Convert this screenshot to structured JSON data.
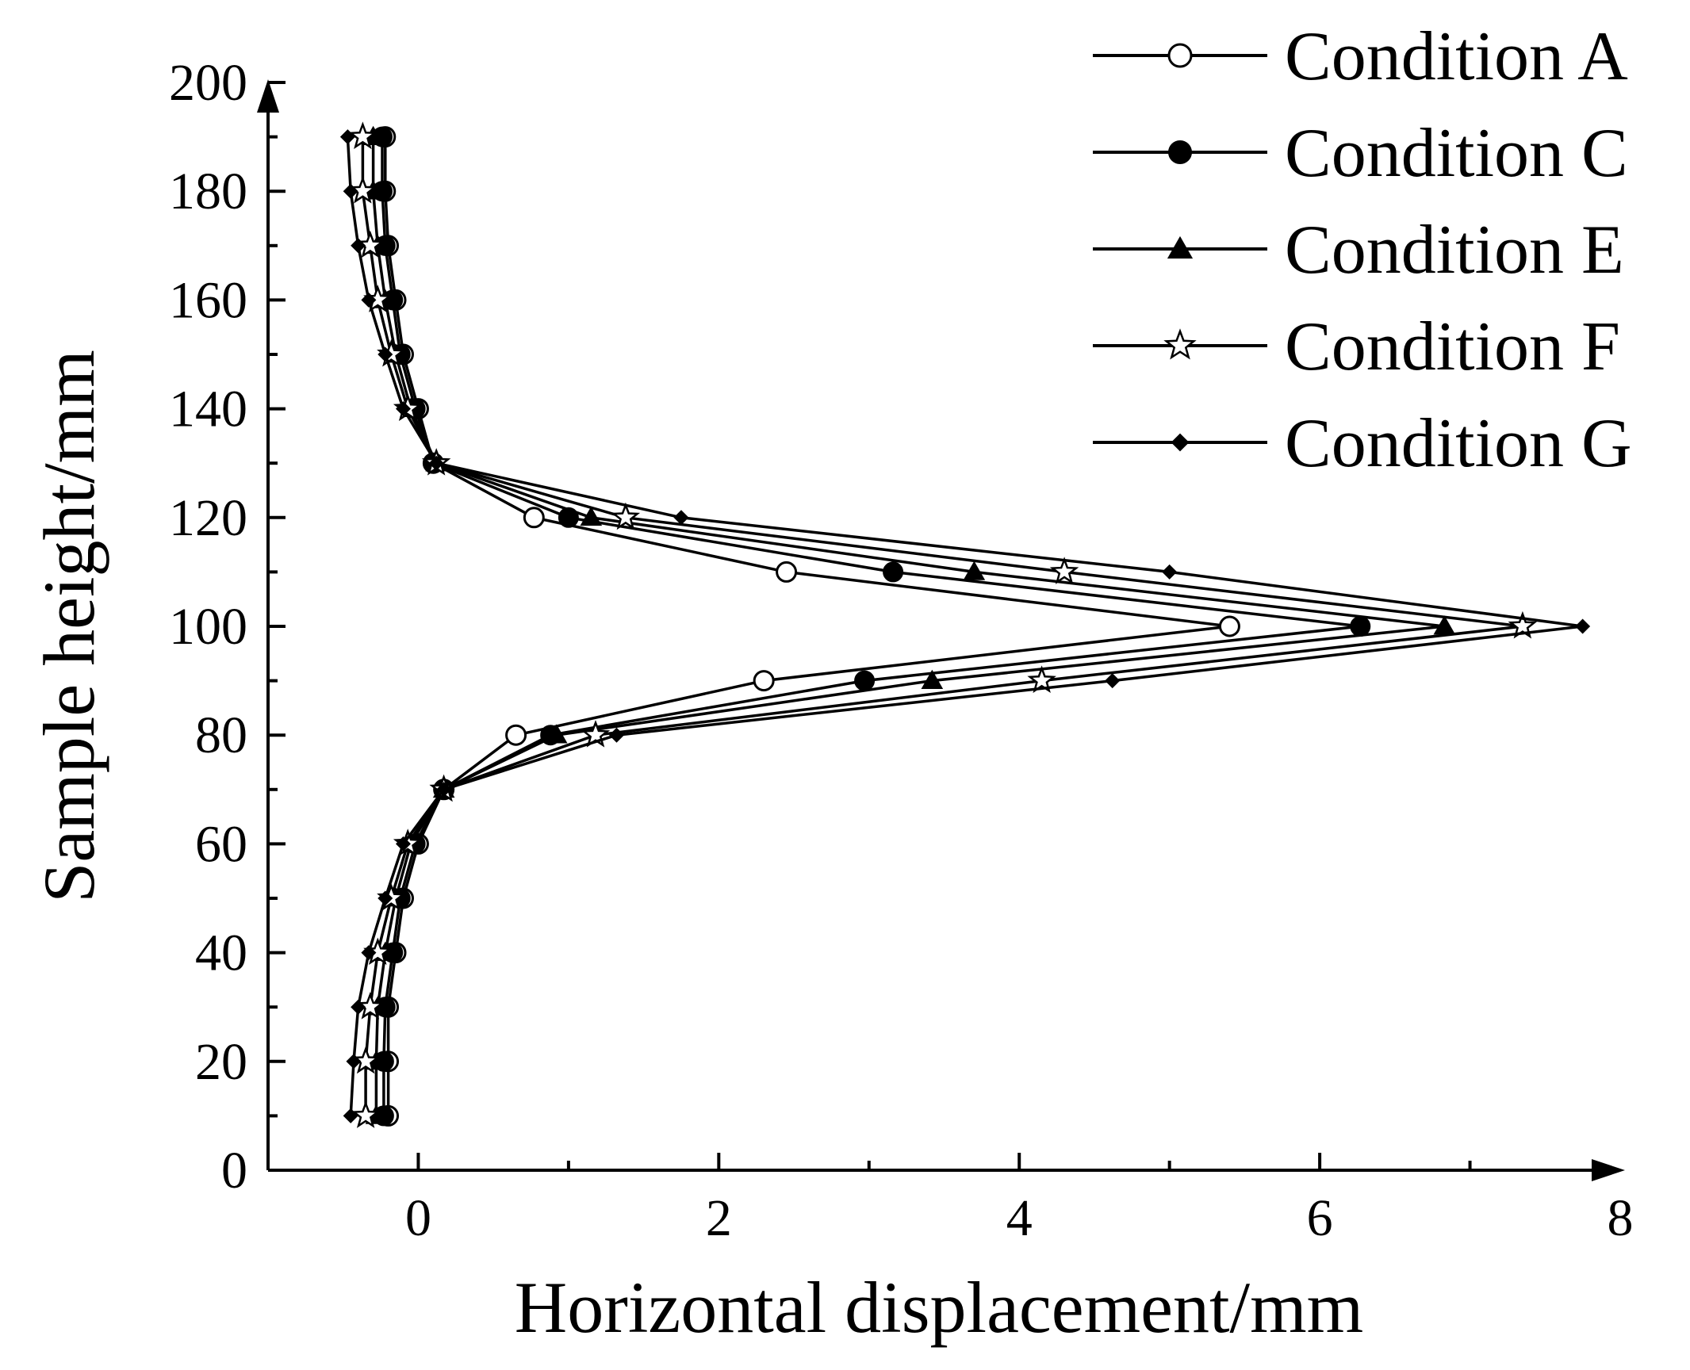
{
  "chart_data": {
    "type": "line",
    "xlabel": "Horizontal displacement/mm",
    "ylabel": "Sample height/mm",
    "xlim": [
      -1,
      8
    ],
    "ylim": [
      0,
      200
    ],
    "xticks": [
      0,
      2,
      4,
      6,
      8
    ],
    "yticks": [
      0,
      20,
      40,
      60,
      80,
      100,
      120,
      140,
      160,
      180,
      200
    ],
    "grid": false,
    "legend_position": "top-right",
    "y_values": [
      10,
      20,
      30,
      40,
      50,
      60,
      70,
      80,
      90,
      100,
      110,
      120,
      130,
      140,
      150,
      160,
      170,
      180,
      190
    ],
    "series": [
      {
        "name": "Condition A",
        "marker": "open-circle",
        "x": [
          -0.2,
          -0.2,
          -0.2,
          -0.15,
          -0.1,
          0.0,
          0.17,
          0.65,
          2.3,
          5.4,
          2.45,
          0.77,
          0.1,
          0.0,
          -0.1,
          -0.15,
          -0.2,
          -0.22,
          -0.22
        ]
      },
      {
        "name": "Condition C",
        "marker": "filled-circle",
        "x": [
          -0.23,
          -0.23,
          -0.22,
          -0.17,
          -0.12,
          -0.02,
          0.17,
          0.88,
          2.97,
          6.27,
          3.16,
          1.0,
          0.1,
          -0.02,
          -0.12,
          -0.17,
          -0.22,
          -0.24,
          -0.24
        ]
      },
      {
        "name": "Condition E",
        "marker": "filled-triangle",
        "x": [
          -0.28,
          -0.28,
          -0.27,
          -0.22,
          -0.15,
          -0.05,
          0.17,
          0.92,
          3.42,
          6.83,
          3.7,
          1.15,
          0.12,
          -0.05,
          -0.15,
          -0.22,
          -0.27,
          -0.3,
          -0.3
        ]
      },
      {
        "name": "Condition F",
        "marker": "open-star",
        "x": [
          -0.35,
          -0.35,
          -0.32,
          -0.27,
          -0.18,
          -0.07,
          0.17,
          1.18,
          4.15,
          7.35,
          4.3,
          1.38,
          0.12,
          -0.07,
          -0.18,
          -0.27,
          -0.32,
          -0.37,
          -0.37
        ]
      },
      {
        "name": "Condition G",
        "marker": "filled-diamond",
        "x": [
          -0.45,
          -0.43,
          -0.4,
          -0.33,
          -0.22,
          -0.1,
          0.17,
          1.32,
          4.62,
          7.75,
          5.0,
          1.75,
          0.12,
          -0.1,
          -0.22,
          -0.33,
          -0.4,
          -0.45,
          -0.47
        ]
      }
    ]
  }
}
